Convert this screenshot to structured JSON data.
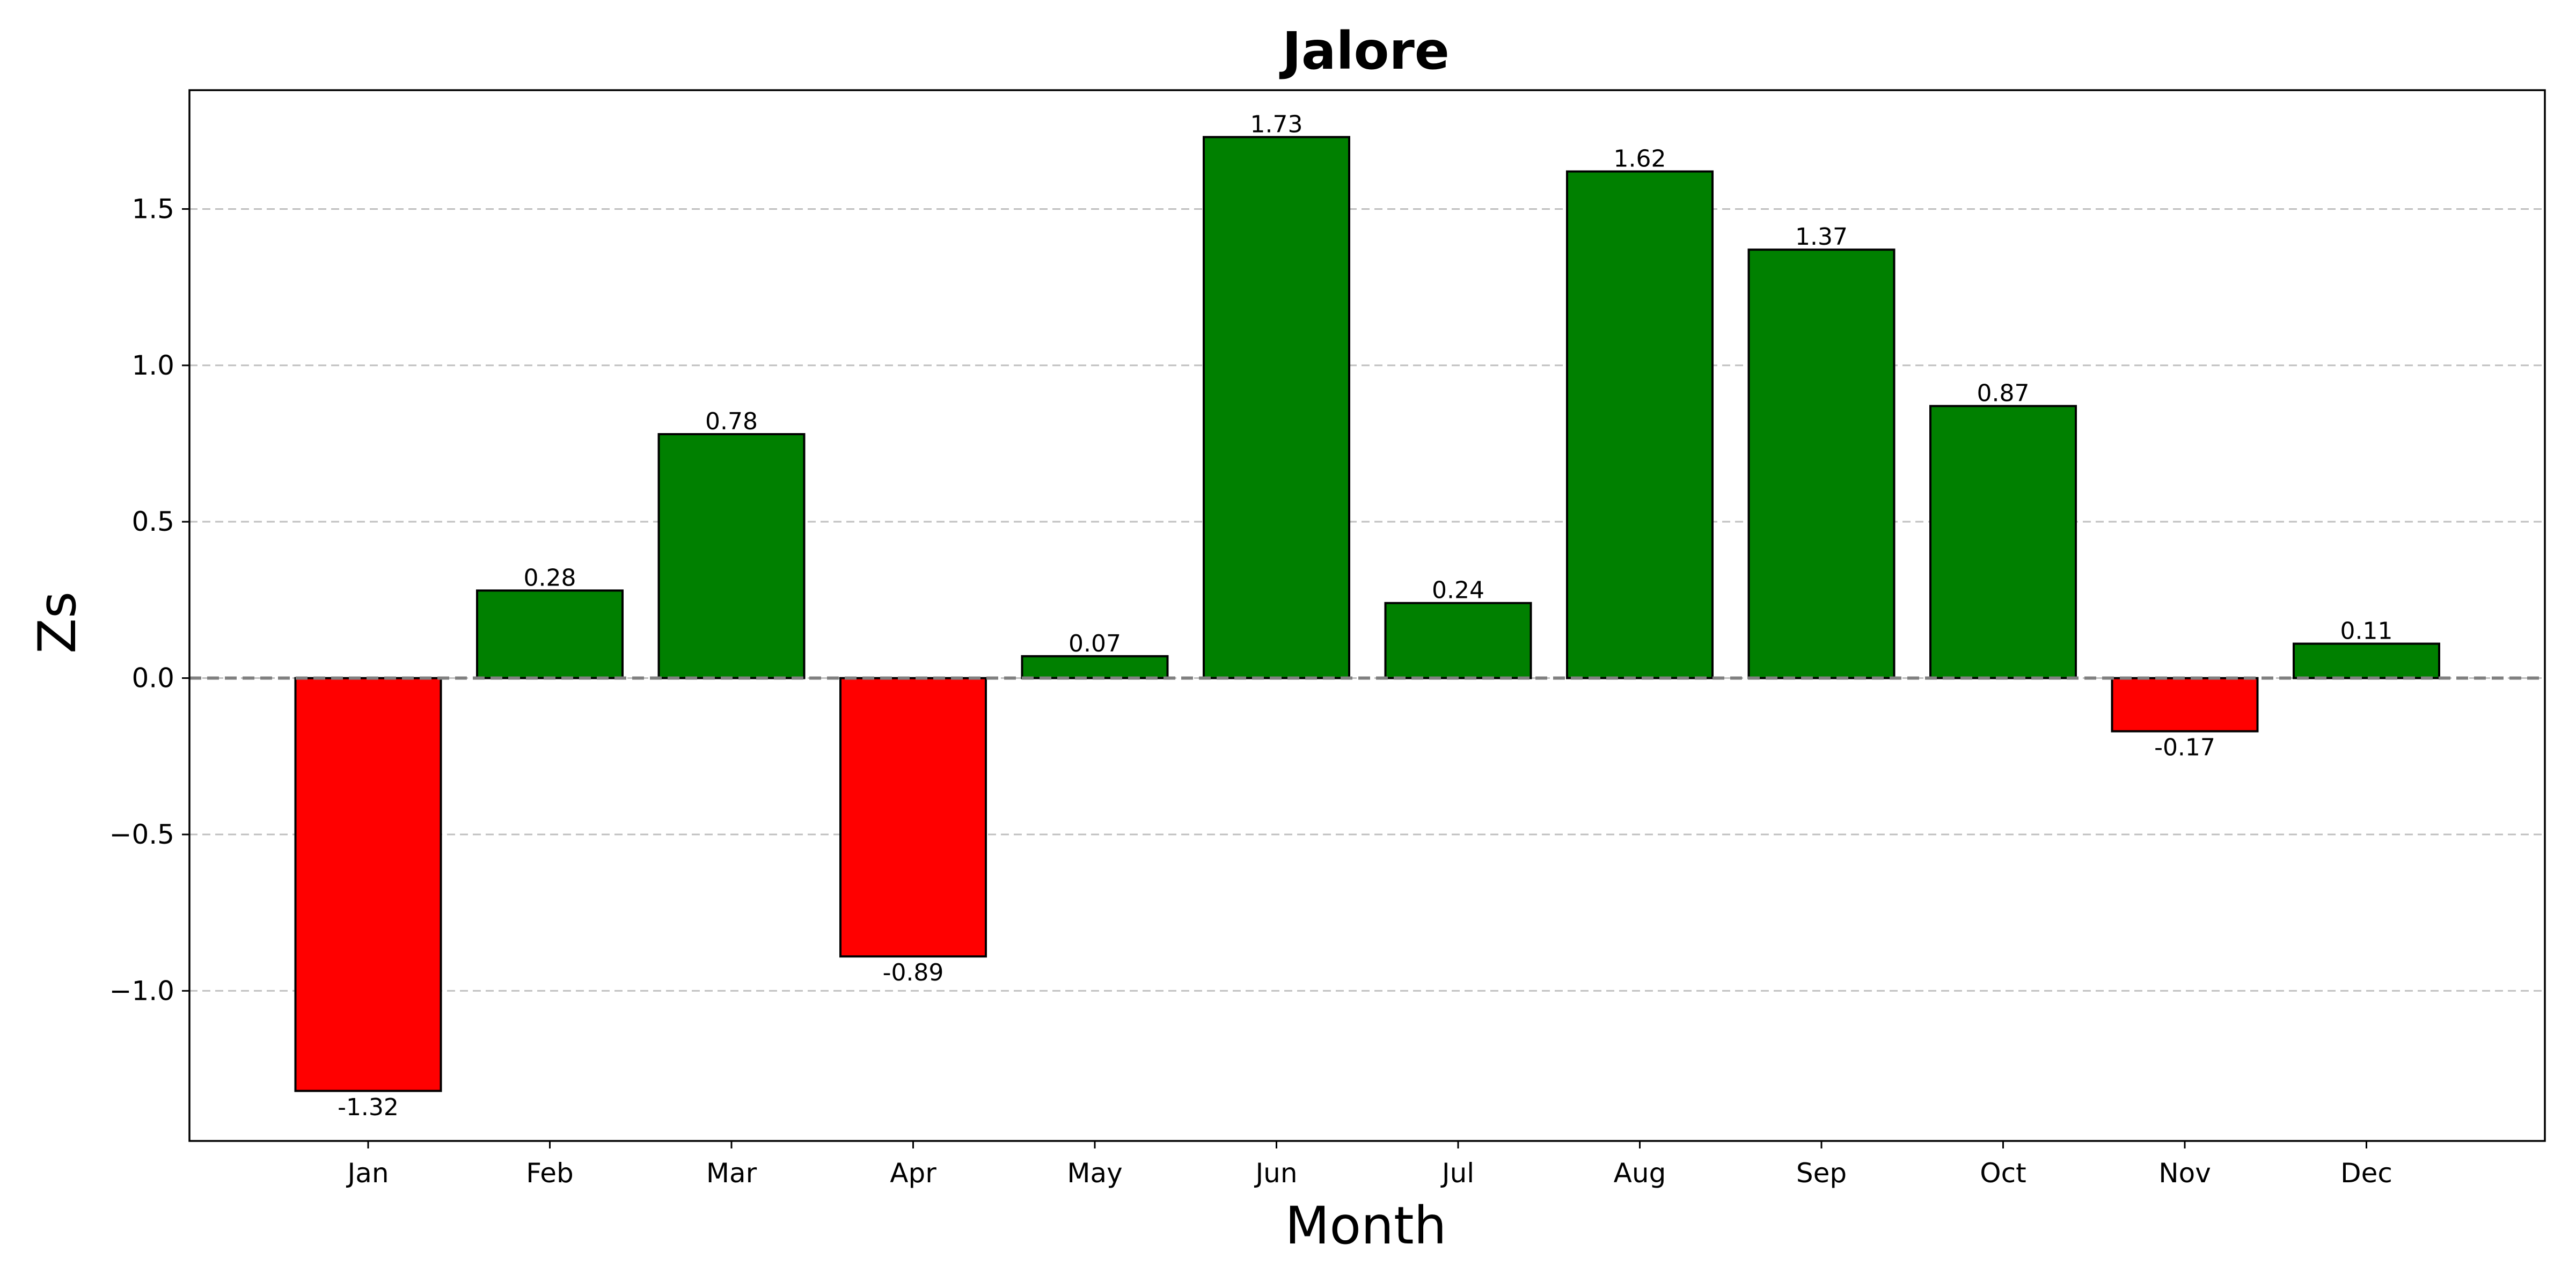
{
  "chart_data": {
    "type": "bar",
    "title": "Jalore",
    "xlabel": "Month",
    "ylabel": "Zs",
    "categories": [
      "Jan",
      "Feb",
      "Mar",
      "Apr",
      "May",
      "Jun",
      "Jul",
      "Aug",
      "Sep",
      "Oct",
      "Nov",
      "Dec"
    ],
    "values": [
      -1.32,
      0.28,
      0.78,
      -0.89,
      0.07,
      1.73,
      0.24,
      1.62,
      1.37,
      0.87,
      -0.17,
      0.11
    ],
    "value_labels": [
      "-1.32",
      "0.28",
      "0.78",
      "-0.89",
      "0.07",
      "1.73",
      "0.24",
      "1.62",
      "1.37",
      "0.87",
      "-0.17",
      "0.11"
    ],
    "ylim": [
      -1.48,
      1.88
    ],
    "yticks": [
      -1.0,
      -0.5,
      0.0,
      0.5,
      1.0,
      1.5
    ],
    "ytick_labels": [
      "−1.0",
      "−0.5",
      "0.0",
      "0.5",
      "1.0",
      "1.5"
    ],
    "grid": "y-dashed",
    "reference_line": 0,
    "colors": {
      "positive": "#008000",
      "negative": "#ff0000",
      "edge": "#000000",
      "grid": "#c0c0c0",
      "reference": "#808080"
    }
  }
}
